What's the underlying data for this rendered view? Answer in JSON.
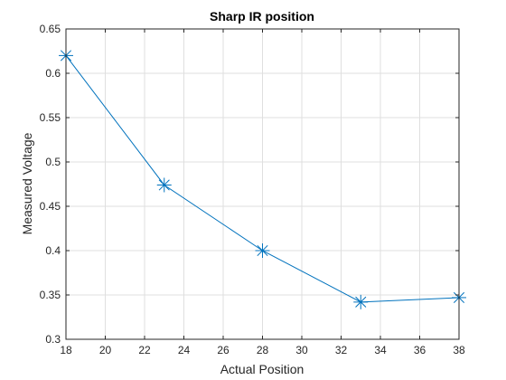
{
  "chart_data": {
    "type": "line",
    "title": "Sharp IR position",
    "xlabel": "Actual Position",
    "ylabel": "Measured Voltage",
    "xlim": [
      18,
      38
    ],
    "ylim": [
      0.3,
      0.65
    ],
    "xticks": [
      "18",
      "20",
      "22",
      "24",
      "26",
      "28",
      "30",
      "32",
      "34",
      "36",
      "38"
    ],
    "yticks": [
      "0.3",
      "0.35",
      "0.4",
      "0.45",
      "0.5",
      "0.55",
      "0.6",
      "0.65"
    ],
    "grid": true,
    "marker": "asterisk",
    "series": [
      {
        "x": [
          18,
          23,
          28,
          33,
          38
        ],
        "y": [
          0.62,
          0.474,
          0.4,
          0.342,
          0.347
        ]
      }
    ],
    "colors": {
      "series": "#0072BD",
      "axis": "#262626",
      "grid": "#DFDFDF"
    }
  }
}
